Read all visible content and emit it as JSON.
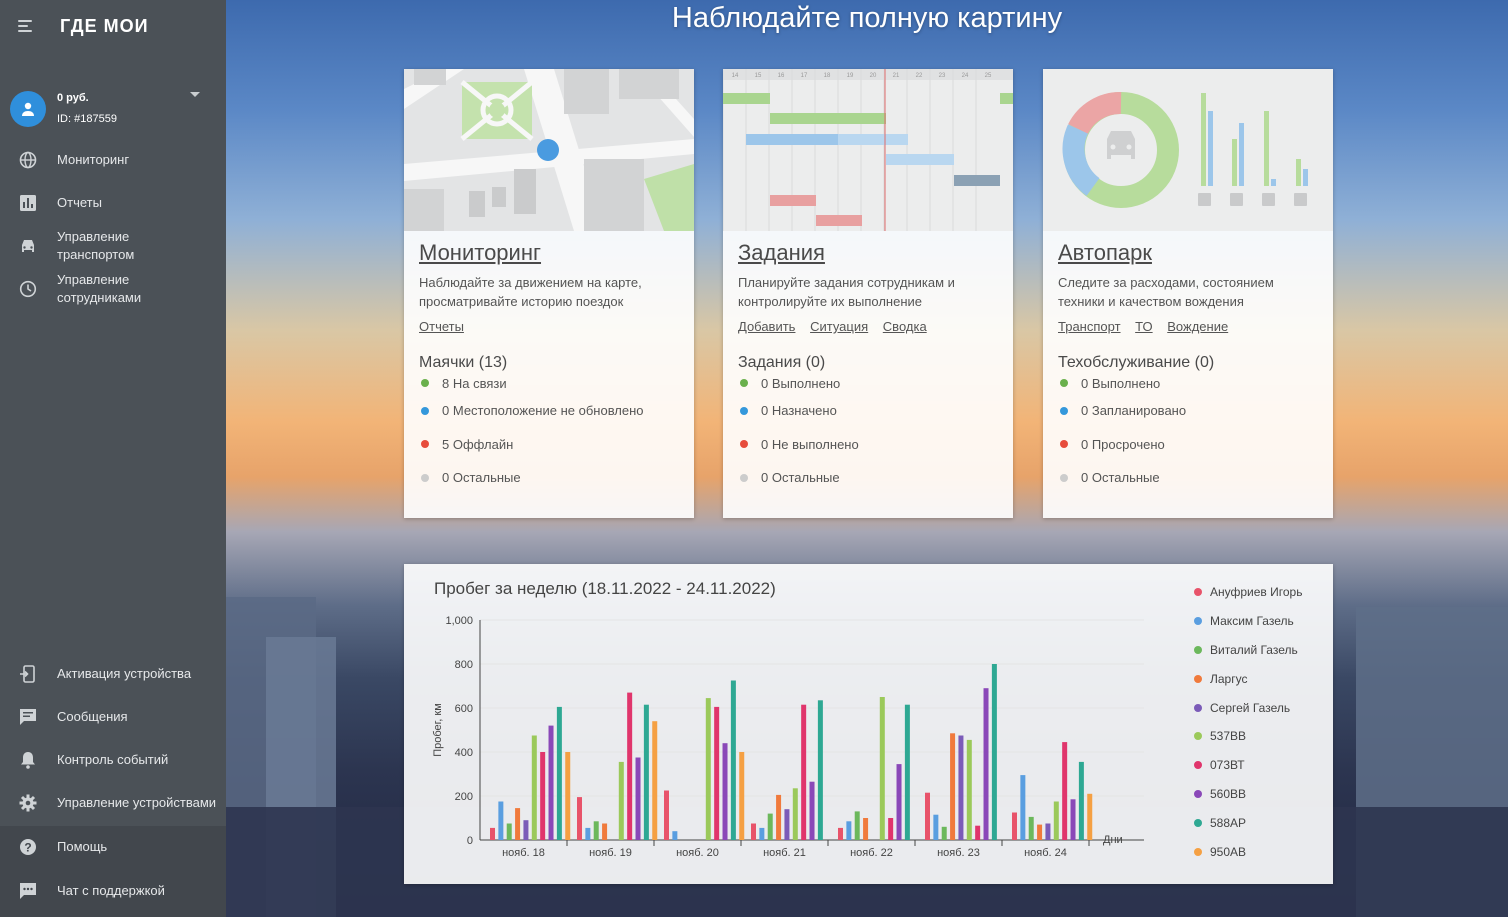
{
  "sidebar": {
    "logo": "ГДЕ МОИ",
    "account": {
      "balance": "0 руб.",
      "id": "ID: #187559"
    },
    "nav": [
      {
        "label": "Мониторинг",
        "icon": "globe-icon"
      },
      {
        "label": "Отчеты",
        "icon": "bar-chart-icon"
      },
      {
        "label": "Управление транспортом",
        "icon": "car-icon"
      },
      {
        "label": "Управление сотрудниками",
        "icon": "clock-icon"
      }
    ],
    "bottom_nav": [
      {
        "label": "Активация устройства",
        "icon": "device-activate-icon"
      },
      {
        "label": "Сообщения",
        "icon": "message-icon"
      },
      {
        "label": "Контроль событий",
        "icon": "bell-icon"
      },
      {
        "label": "Управление устройствами",
        "icon": "gear-icon"
      },
      {
        "label": "Помощь",
        "icon": "help-icon"
      },
      {
        "label": "Чат с поддержкой",
        "icon": "chat-icon"
      }
    ]
  },
  "hero": {
    "title": "Наблюдайте полную картину"
  },
  "cards": [
    {
      "title": "Мониторинг",
      "desc": "Наблюдайте за движением на карте, просматривайте историю поездок",
      "links": [
        "Отчеты"
      ],
      "section": "Маячки (13)",
      "stats": [
        {
          "text": "8 На связи",
          "color": "#6ab04c"
        },
        {
          "text": "0 Местоположение не обновлено",
          "color": "#3498db"
        },
        {
          "text": "5 Оффлайн",
          "color": "#e74c3c"
        },
        {
          "text": "0 Остальные",
          "color": "#cccccc"
        }
      ]
    },
    {
      "title": "Задания",
      "desc": "Планируйте задания сотрудникам и контролируйте их выполнение",
      "links": [
        "Добавить",
        "Ситуация",
        "Сводка"
      ],
      "section": "Задания (0)",
      "stats": [
        {
          "text": "0 Выполнено",
          "color": "#6ab04c"
        },
        {
          "text": "0 Назначено",
          "color": "#3498db"
        },
        {
          "text": "0 Не выполнено",
          "color": "#e74c3c"
        },
        {
          "text": "0 Остальные",
          "color": "#cccccc"
        }
      ]
    },
    {
      "title": "Автопарк",
      "desc": "Следите за расходами, состоянием техники и качеством вождения",
      "links": [
        "Транспорт",
        "ТО",
        "Вождение"
      ],
      "section": "Техобслуживание (0)",
      "stats": [
        {
          "text": "0 Выполнено",
          "color": "#6ab04c"
        },
        {
          "text": "0 Запланировано",
          "color": "#3498db"
        },
        {
          "text": "0 Просрочено",
          "color": "#e74c3c"
        },
        {
          "text": "0 Остальные",
          "color": "#cccccc"
        }
      ]
    }
  ],
  "gantt_days": [
    "14",
    "15",
    "16",
    "17",
    "18",
    "19",
    "20",
    "21",
    "22",
    "23",
    "24",
    "25"
  ],
  "chart_data": {
    "type": "bar",
    "title": "Пробег за неделю (18.11.2022 - 24.11.2022)",
    "xlabel": "Дни",
    "ylabel": "Пробег, км",
    "ylim": [
      0,
      1000
    ],
    "yticks": [
      "0",
      "200",
      "400",
      "600",
      "800",
      "1,000"
    ],
    "grid": true,
    "legend_position": "right",
    "categories": [
      "нояб. 18",
      "нояб. 19",
      "нояб. 20",
      "нояб. 21",
      "нояб. 22",
      "нояб. 23",
      "нояб. 24"
    ],
    "series": [
      {
        "name": "Ануфриев Игорь",
        "color": "#e8536a",
        "values": [
          55,
          195,
          225,
          75,
          55,
          215,
          125
        ]
      },
      {
        "name": "Максим Газель",
        "color": "#5a9ee0",
        "values": [
          175,
          55,
          40,
          55,
          85,
          115,
          295
        ]
      },
      {
        "name": "Виталий Газель",
        "color": "#6cb85c",
        "values": [
          75,
          85,
          0,
          120,
          130,
          60,
          105
        ]
      },
      {
        "name": "Ларгус",
        "color": "#f07a3c",
        "values": [
          145,
          75,
          0,
          205,
          100,
          485,
          70
        ]
      },
      {
        "name": "Сергей Газель",
        "color": "#7b5bb8",
        "values": [
          90,
          0,
          0,
          140,
          0,
          475,
          75
        ]
      },
      {
        "name": "537ВВ",
        "color": "#9bc95a",
        "values": [
          475,
          355,
          645,
          235,
          650,
          455,
          175
        ]
      },
      {
        "name": "073ВТ",
        "color": "#e0356c",
        "values": [
          400,
          670,
          605,
          615,
          100,
          65,
          445
        ]
      },
      {
        "name": "560ВВ",
        "color": "#8a48b8",
        "values": [
          520,
          375,
          440,
          265,
          345,
          690,
          185
        ]
      },
      {
        "name": "588АР",
        "color": "#2ea893",
        "values": [
          605,
          615,
          725,
          635,
          615,
          800,
          355
        ]
      },
      {
        "name": "950АВ",
        "color": "#f5a043",
        "values": [
          400,
          540,
          400,
          0,
          0,
          0,
          210
        ]
      }
    ]
  }
}
